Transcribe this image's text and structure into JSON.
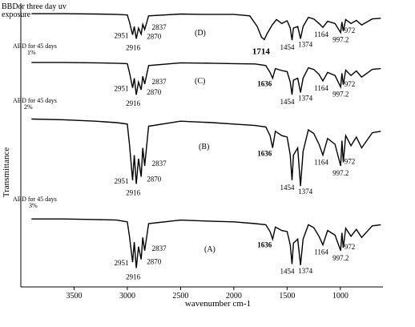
{
  "chart_data": {
    "type": "line",
    "title": "",
    "xlabel": "wavenumber cm-1",
    "ylabel": "Transmittance",
    "xlim": [
      4000,
      600
    ],
    "x_reversed": true,
    "x_ticks": [
      {
        "value": 3500,
        "label": "3500"
      },
      {
        "value": 3000,
        "label": "3000"
      },
      {
        "value": 2500,
        "label": "2500"
      },
      {
        "value": 2000,
        "label": "2000"
      },
      {
        "value": 1500,
        "label": "1500"
      },
      {
        "value": 1000,
        "label": "1000"
      }
    ],
    "grid": false,
    "legend": "none",
    "series": [
      {
        "name": "BBDor three day uv exposure",
        "name_line2": "exposure",
        "name_line1": "BBDor three day uv",
        "panel": "(D)",
        "color": "#000000",
        "points": [
          [
            3900,
            0.97
          ],
          [
            3600,
            0.97
          ],
          [
            3300,
            0.96
          ],
          [
            3100,
            0.95
          ],
          [
            3000,
            0.93
          ],
          [
            2980,
            0.7
          ],
          [
            2951,
            0.28
          ],
          [
            2935,
            0.55
          ],
          [
            2916,
            0.15
          ],
          [
            2895,
            0.5
          ],
          [
            2870,
            0.3
          ],
          [
            2855,
            0.62
          ],
          [
            2837,
            0.45
          ],
          [
            2800,
            0.9
          ],
          [
            2500,
            0.96
          ],
          [
            2300,
            0.95
          ],
          [
            2000,
            0.95
          ],
          [
            1850,
            0.9
          ],
          [
            1780,
            0.55
          ],
          [
            1740,
            0.2
          ],
          [
            1714,
            0.12
          ],
          [
            1690,
            0.3
          ],
          [
            1640,
            0.6
          ],
          [
            1600,
            0.78
          ],
          [
            1550,
            0.65
          ],
          [
            1500,
            0.74
          ],
          [
            1470,
            0.5
          ],
          [
            1454,
            0.1
          ],
          [
            1440,
            0.5
          ],
          [
            1400,
            0.55
          ],
          [
            1374,
            0.15
          ],
          [
            1350,
            0.55
          ],
          [
            1300,
            0.85
          ],
          [
            1250,
            0.8
          ],
          [
            1200,
            0.65
          ],
          [
            1164,
            0.52
          ],
          [
            1120,
            0.72
          ],
          [
            1050,
            0.65
          ],
          [
            997.2,
            0.35
          ],
          [
            985,
            0.7
          ],
          [
            972,
            0.4
          ],
          [
            950,
            0.78
          ],
          [
            900,
            0.65
          ],
          [
            850,
            0.75
          ],
          [
            800,
            0.6
          ],
          [
            700,
            0.8
          ],
          [
            620,
            0.82
          ]
        ],
        "annotations": [
          "2951",
          "2916",
          "2870",
          "2837",
          "1714",
          "1454",
          "1374",
          "1164",
          "997.2",
          "972"
        ]
      },
      {
        "name": "ABD for 45 days",
        "concentration": "1%",
        "panel": "(C)",
        "color": "#000000",
        "points": [
          [
            3900,
            0.96
          ],
          [
            3600,
            0.96
          ],
          [
            3300,
            0.95
          ],
          [
            3100,
            0.94
          ],
          [
            3000,
            0.93
          ],
          [
            2980,
            0.7
          ],
          [
            2951,
            0.3
          ],
          [
            2935,
            0.55
          ],
          [
            2916,
            0.12
          ],
          [
            2895,
            0.45
          ],
          [
            2870,
            0.25
          ],
          [
            2855,
            0.6
          ],
          [
            2837,
            0.4
          ],
          [
            2800,
            0.88
          ],
          [
            2500,
            0.95
          ],
          [
            2200,
            0.94
          ],
          [
            2000,
            0.93
          ],
          [
            1800,
            0.92
          ],
          [
            1700,
            0.88
          ],
          [
            1660,
            0.7
          ],
          [
            1636,
            0.55
          ],
          [
            1610,
            0.8
          ],
          [
            1550,
            0.75
          ],
          [
            1500,
            0.72
          ],
          [
            1470,
            0.45
          ],
          [
            1454,
            0.12
          ],
          [
            1440,
            0.5
          ],
          [
            1400,
            0.55
          ],
          [
            1374,
            0.18
          ],
          [
            1350,
            0.55
          ],
          [
            1300,
            0.82
          ],
          [
            1250,
            0.78
          ],
          [
            1200,
            0.65
          ],
          [
            1164,
            0.48
          ],
          [
            1120,
            0.7
          ],
          [
            1050,
            0.62
          ],
          [
            997.2,
            0.32
          ],
          [
            985,
            0.68
          ],
          [
            972,
            0.38
          ],
          [
            950,
            0.76
          ],
          [
            900,
            0.62
          ],
          [
            850,
            0.74
          ],
          [
            800,
            0.58
          ],
          [
            700,
            0.78
          ],
          [
            620,
            0.8
          ]
        ],
        "annotations": [
          "2951",
          "2916",
          "2870",
          "2837",
          "1636",
          "1454",
          "1374",
          "1164",
          "997.2",
          "972"
        ]
      },
      {
        "name": "ABD for 45 days",
        "concentration": "2%",
        "panel": "(B)",
        "color": "#000000",
        "points": [
          [
            3900,
            0.95
          ],
          [
            3600,
            0.94
          ],
          [
            3300,
            0.92
          ],
          [
            3100,
            0.9
          ],
          [
            3000,
            0.88
          ],
          [
            2980,
            0.6
          ],
          [
            2951,
            0.1
          ],
          [
            2935,
            0.45
          ],
          [
            2916,
            0.05
          ],
          [
            2895,
            0.4
          ],
          [
            2870,
            0.15
          ],
          [
            2855,
            0.55
          ],
          [
            2837,
            0.3
          ],
          [
            2800,
            0.85
          ],
          [
            2500,
            0.92
          ],
          [
            2200,
            0.9
          ],
          [
            2000,
            0.88
          ],
          [
            1800,
            0.86
          ],
          [
            1700,
            0.84
          ],
          [
            1660,
            0.72
          ],
          [
            1636,
            0.55
          ],
          [
            1610,
            0.78
          ],
          [
            1550,
            0.72
          ],
          [
            1500,
            0.7
          ],
          [
            1470,
            0.45
          ],
          [
            1454,
            0.1
          ],
          [
            1440,
            0.45
          ],
          [
            1400,
            0.55
          ],
          [
            1374,
            0.02
          ],
          [
            1350,
            0.5
          ],
          [
            1300,
            0.8
          ],
          [
            1250,
            0.75
          ],
          [
            1200,
            0.6
          ],
          [
            1164,
            0.45
          ],
          [
            1120,
            0.68
          ],
          [
            1050,
            0.6
          ],
          [
            997.2,
            0.3
          ],
          [
            985,
            0.65
          ],
          [
            972,
            0.35
          ],
          [
            950,
            0.72
          ],
          [
            900,
            0.58
          ],
          [
            850,
            0.7
          ],
          [
            800,
            0.55
          ],
          [
            700,
            0.76
          ],
          [
            620,
            0.78
          ]
        ],
        "annotations": [
          "2951",
          "2916",
          "2870",
          "2837",
          "1636",
          "1454",
          "1374",
          "1164",
          "997.2",
          "972"
        ]
      },
      {
        "name": "ABD for 45 days",
        "concentration": "3%",
        "panel": "(A)",
        "color": "#000000",
        "points": [
          [
            3900,
            0.9
          ],
          [
            3600,
            0.9
          ],
          [
            3300,
            0.89
          ],
          [
            3100,
            0.88
          ],
          [
            3000,
            0.85
          ],
          [
            2980,
            0.6
          ],
          [
            2951,
            0.15
          ],
          [
            2935,
            0.5
          ],
          [
            2916,
            0.05
          ],
          [
            2895,
            0.42
          ],
          [
            2870,
            0.2
          ],
          [
            2855,
            0.58
          ],
          [
            2837,
            0.35
          ],
          [
            2800,
            0.82
          ],
          [
            2500,
            0.88
          ],
          [
            2200,
            0.86
          ],
          [
            2000,
            0.85
          ],
          [
            1800,
            0.82
          ],
          [
            1700,
            0.8
          ],
          [
            1660,
            0.68
          ],
          [
            1636,
            0.55
          ],
          [
            1610,
            0.76
          ],
          [
            1550,
            0.7
          ],
          [
            1500,
            0.68
          ],
          [
            1470,
            0.45
          ],
          [
            1454,
            0.12
          ],
          [
            1440,
            0.48
          ],
          [
            1400,
            0.55
          ],
          [
            1374,
            0.1
          ],
          [
            1350,
            0.55
          ],
          [
            1300,
            0.8
          ],
          [
            1250,
            0.75
          ],
          [
            1200,
            0.6
          ],
          [
            1164,
            0.45
          ],
          [
            1120,
            0.7
          ],
          [
            1050,
            0.62
          ],
          [
            997.2,
            0.35
          ],
          [
            985,
            0.66
          ],
          [
            972,
            0.4
          ],
          [
            950,
            0.74
          ],
          [
            900,
            0.6
          ],
          [
            850,
            0.72
          ],
          [
            800,
            0.58
          ],
          [
            700,
            0.78
          ],
          [
            620,
            0.8
          ]
        ],
        "annotations": [
          "2951",
          "2916",
          "2870",
          "2837",
          "1636",
          "1454",
          "1374",
          "1164",
          "997.2",
          "972"
        ]
      }
    ]
  }
}
